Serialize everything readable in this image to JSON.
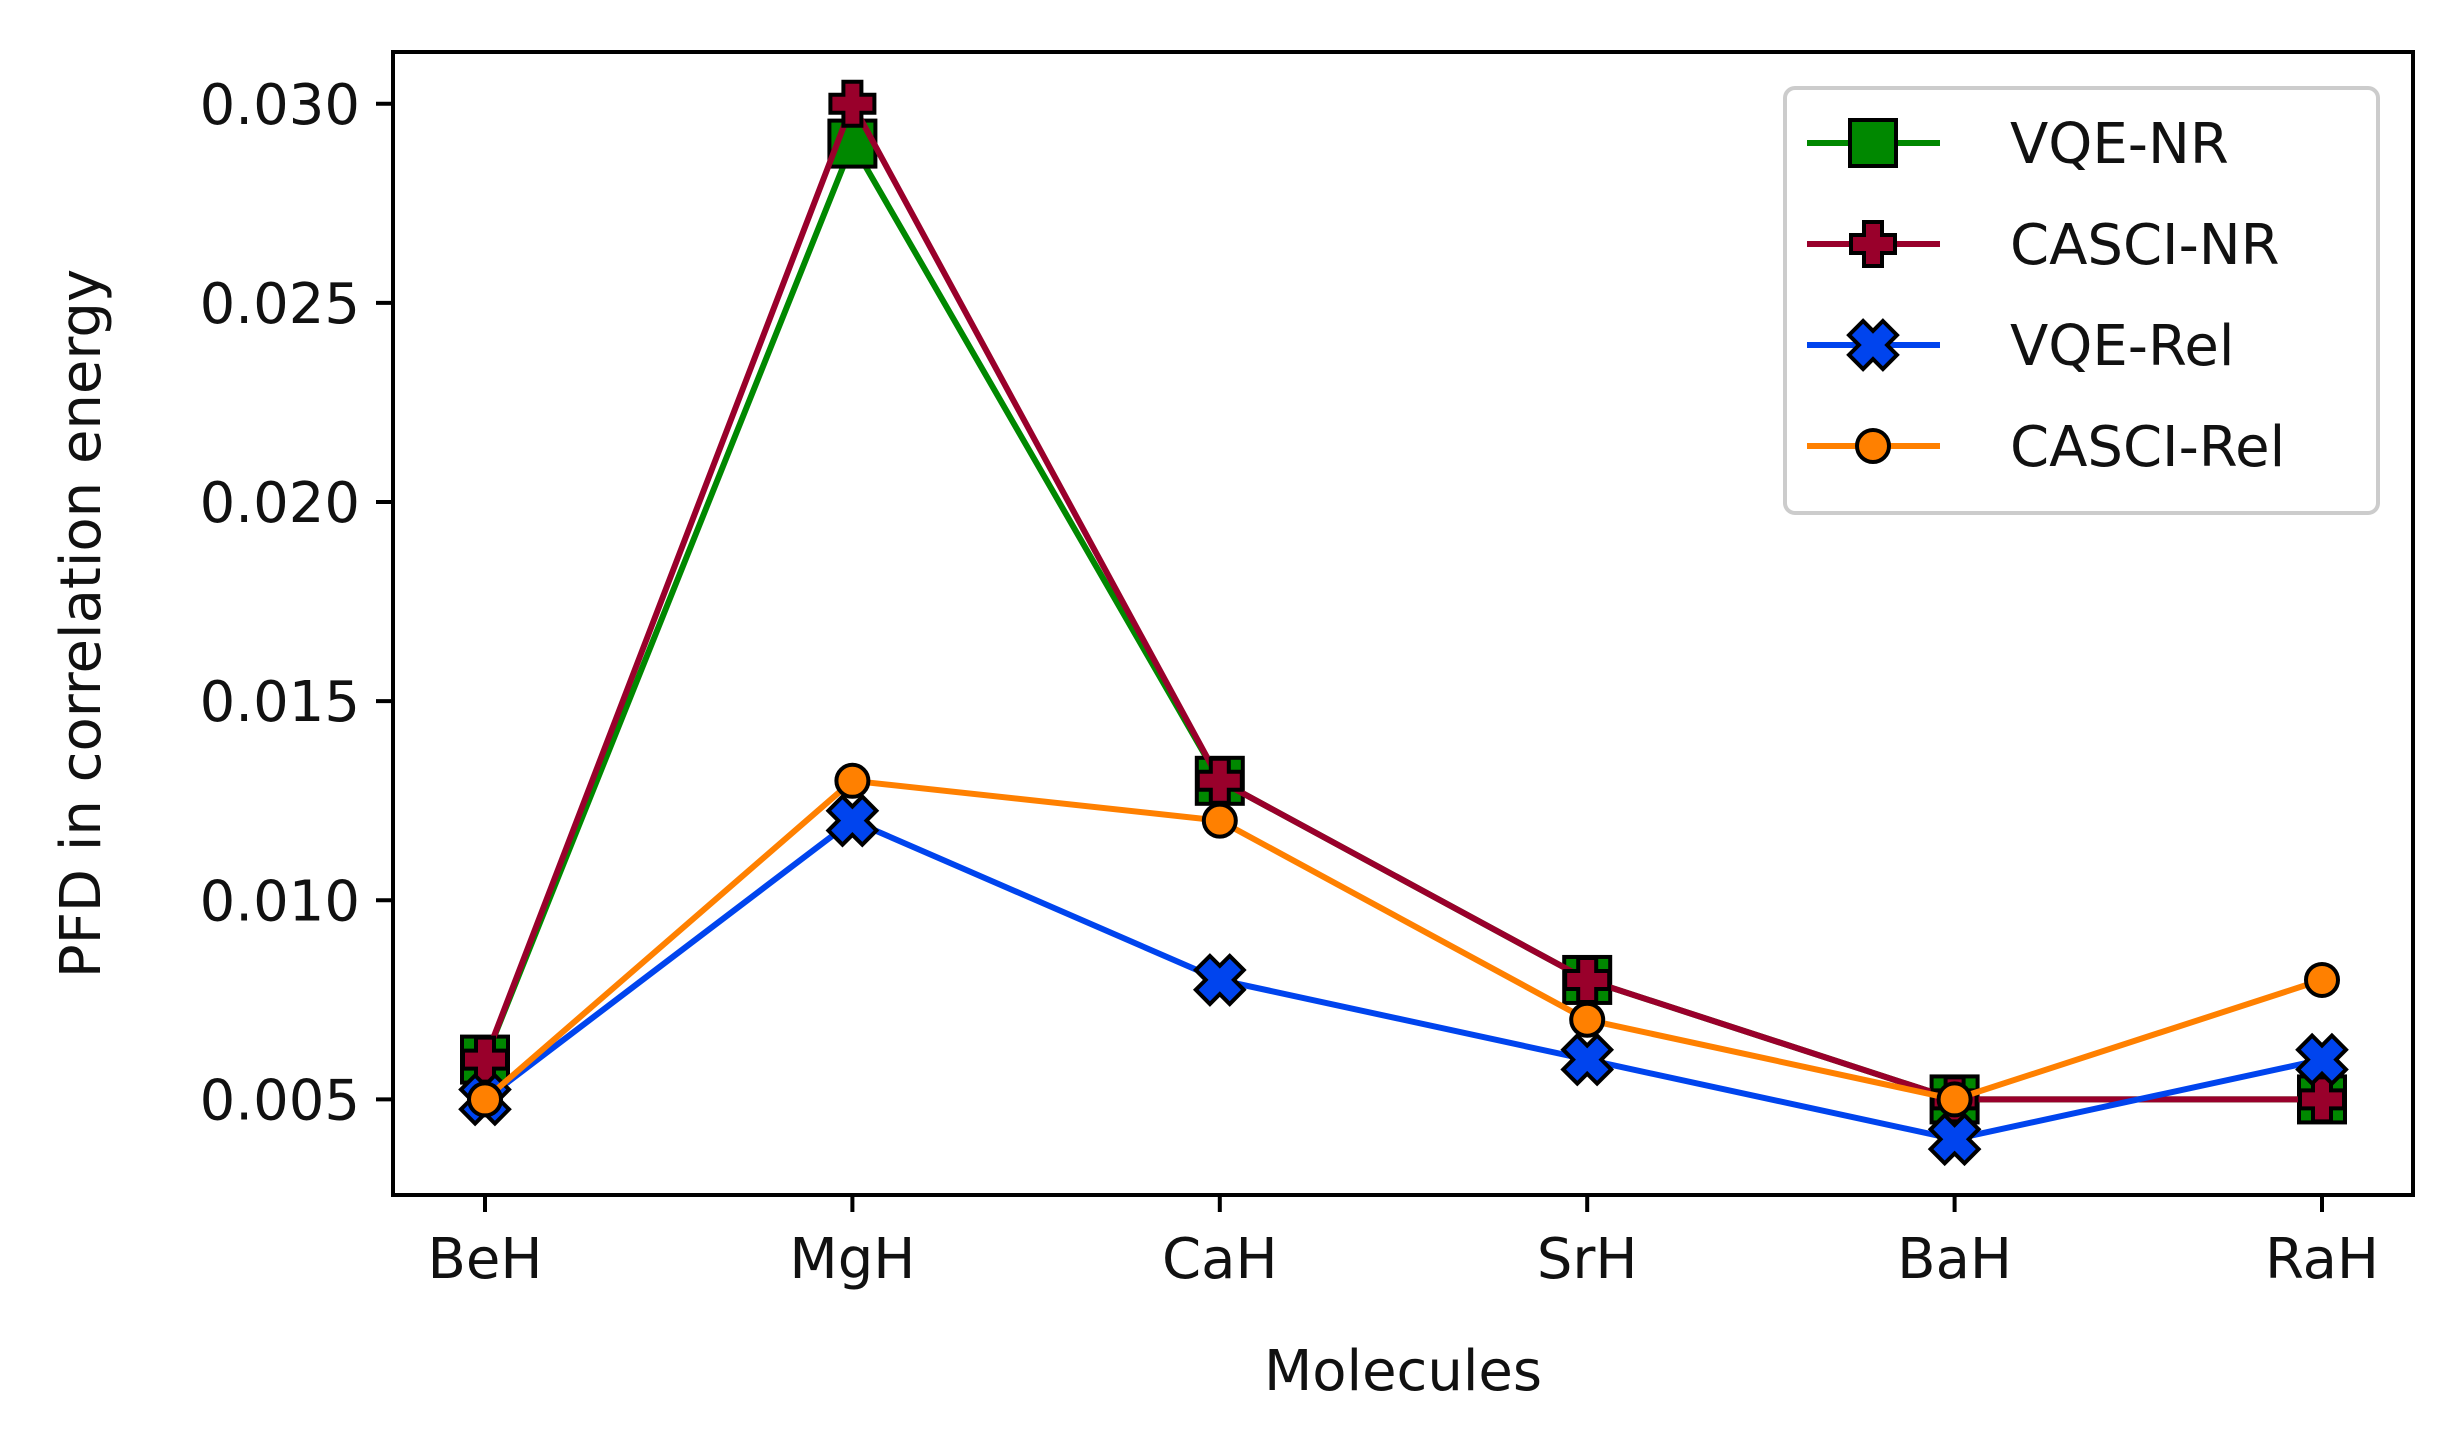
{
  "chart_data": {
    "type": "line",
    "title": "",
    "xlabel": "Molecules",
    "ylabel": "PFD in correlation energy",
    "categories": [
      "BeH",
      "MgH",
      "CaH",
      "SrH",
      "BaH",
      "RaH"
    ],
    "ylim": [
      0.0026,
      0.0313
    ],
    "yticks": [
      0.005,
      0.01,
      0.015,
      0.02,
      0.025,
      0.03
    ],
    "ytick_labels": [
      "0.005",
      "0.010",
      "0.015",
      "0.020",
      "0.025",
      "0.030"
    ],
    "grid": false,
    "legend_position": "top-right",
    "series": [
      {
        "name": "VQE-NR",
        "color": "#008800",
        "marker": "square",
        "values": [
          0.006,
          0.029,
          0.013,
          0.008,
          0.005,
          0.005
        ]
      },
      {
        "name": "CASCI-NR",
        "color": "#99002b",
        "marker": "plus",
        "values": [
          0.006,
          0.03,
          0.013,
          0.008,
          0.005,
          0.005
        ]
      },
      {
        "name": "VQE-Rel",
        "color": "#0044ee",
        "marker": "x",
        "values": [
          0.005,
          0.012,
          0.008,
          0.006,
          0.004,
          0.006
        ]
      },
      {
        "name": "CASCI-Rel",
        "color": "#ff8000",
        "marker": "circle",
        "values": [
          0.005,
          0.013,
          0.012,
          0.007,
          0.005,
          0.008
        ]
      }
    ]
  }
}
